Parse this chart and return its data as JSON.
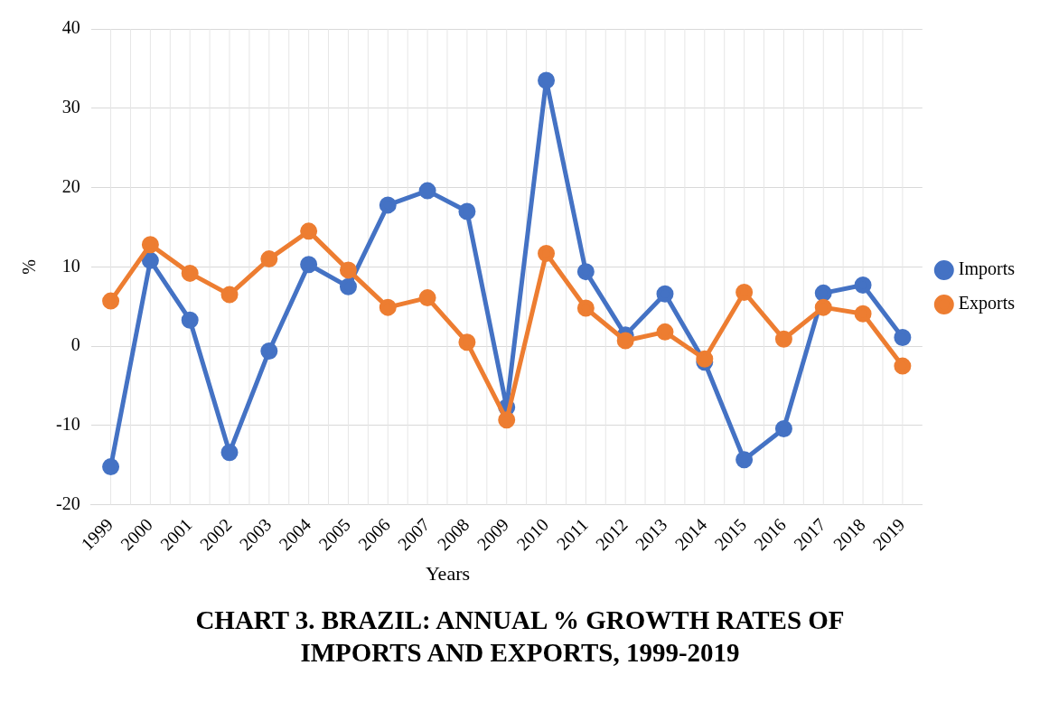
{
  "chart_data": {
    "type": "line",
    "title": "CHART 3. BRAZIL: ANNUAL % GROWTH RATES OF IMPORTS AND EXPORTS, 1999-2019",
    "xlabel": "Years",
    "ylabel": "%",
    "categories": [
      "1999",
      "2000",
      "2001",
      "2002",
      "2003",
      "2004",
      "2005",
      "2006",
      "2007",
      "2008",
      "2009",
      "2010",
      "2011",
      "2012",
      "2013",
      "2014",
      "2015",
      "2016",
      "2017",
      "2018",
      "2019"
    ],
    "series": [
      {
        "name": "Imports",
        "color": "#4472c4",
        "values": [
          -15.2,
          10.8,
          3.3,
          -13.4,
          -0.6,
          10.3,
          7.5,
          17.8,
          19.6,
          17.0,
          -7.7,
          33.5,
          9.4,
          1.4,
          6.6,
          -2.0,
          -14.3,
          -10.4,
          6.7,
          7.7,
          1.1
        ]
      },
      {
        "name": "Exports",
        "color": "#ed7d31",
        "values": [
          5.7,
          12.8,
          9.2,
          6.5,
          11.0,
          14.5,
          9.6,
          4.9,
          6.1,
          0.5,
          -9.3,
          11.7,
          4.8,
          0.7,
          1.8,
          -1.6,
          6.8,
          0.9,
          4.9,
          4.1,
          -2.5
        ]
      }
    ],
    "ylim": [
      -20,
      40
    ],
    "yticks": [
      -20,
      -10,
      0,
      10,
      20,
      30,
      40
    ],
    "grid": true,
    "legend": "right",
    "marker": "circle",
    "line_style": "solid"
  }
}
